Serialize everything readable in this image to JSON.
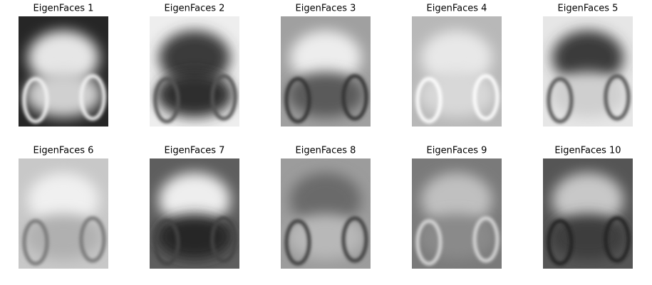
{
  "panels": [
    {
      "title": "EigenFaces 1"
    },
    {
      "title": "EigenFaces 2"
    },
    {
      "title": "EigenFaces 3"
    },
    {
      "title": "EigenFaces 4"
    },
    {
      "title": "EigenFaces 5"
    },
    {
      "title": "EigenFaces 6"
    },
    {
      "title": "EigenFaces 7"
    },
    {
      "title": "EigenFaces 8"
    },
    {
      "title": "EigenFaces 9"
    },
    {
      "title": "EigenFaces 10"
    }
  ]
}
